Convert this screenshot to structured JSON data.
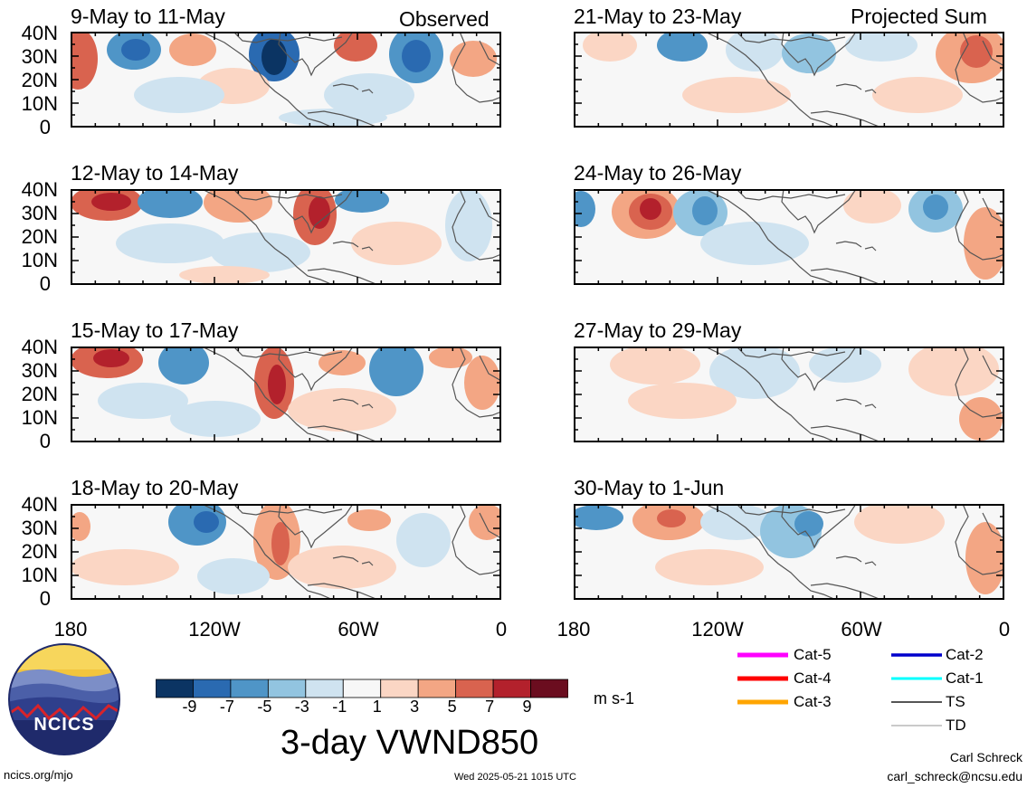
{
  "observed_label": "Observed",
  "projected_label": "Projected Sum",
  "panels_left": [
    {
      "title": "9-May to 11-May"
    },
    {
      "title": "12-May to 14-May"
    },
    {
      "title": "15-May to 17-May"
    },
    {
      "title": "18-May to 20-May"
    }
  ],
  "panels_right": [
    {
      "title": "21-May to 23-May"
    },
    {
      "title": "24-May to 26-May"
    },
    {
      "title": "27-May to 29-May"
    },
    {
      "title": "30-May to 1-Jun"
    }
  ],
  "lat_ticks": [
    "40N",
    "30N",
    "20N",
    "10N",
    "0"
  ],
  "lon_ticks": [
    "180",
    "120W",
    "60W",
    "0"
  ],
  "colorbar": {
    "colors": [
      "#0b3463",
      "#2a6ab1",
      "#4f95c7",
      "#92c4e0",
      "#cfe3f0",
      "#f7f7f7",
      "#fbd6c4",
      "#f3a684",
      "#d9634f",
      "#b3212c",
      "#6b0d1f"
    ],
    "tick_labels": [
      "-9",
      "-7",
      "-5",
      "-3",
      "-1",
      "1",
      "3",
      "5",
      "7",
      "9"
    ],
    "units": "m s-1"
  },
  "variable_title": "3-day VWND850",
  "storm_legend": [
    {
      "label": "Cat-5",
      "color": "#ff00ff"
    },
    {
      "label": "Cat-4",
      "color": "#ff0000"
    },
    {
      "label": "Cat-3",
      "color": "#ffa500"
    },
    {
      "label": "Cat-2",
      "color": "#0000cc"
    },
    {
      "label": "Cat-1",
      "color": "#00ffff"
    },
    {
      "label": "TS",
      "color": "#555555"
    },
    {
      "label": "TD",
      "color": "#aaaaaa"
    }
  ],
  "logo_text": "NCICS",
  "site_url": "ncics.org/mjo",
  "timestamp": "Wed 2025-05-21 1015 UTC",
  "author": "Carl Schreck",
  "email": "carl_schreck@ncsu.edu"
}
